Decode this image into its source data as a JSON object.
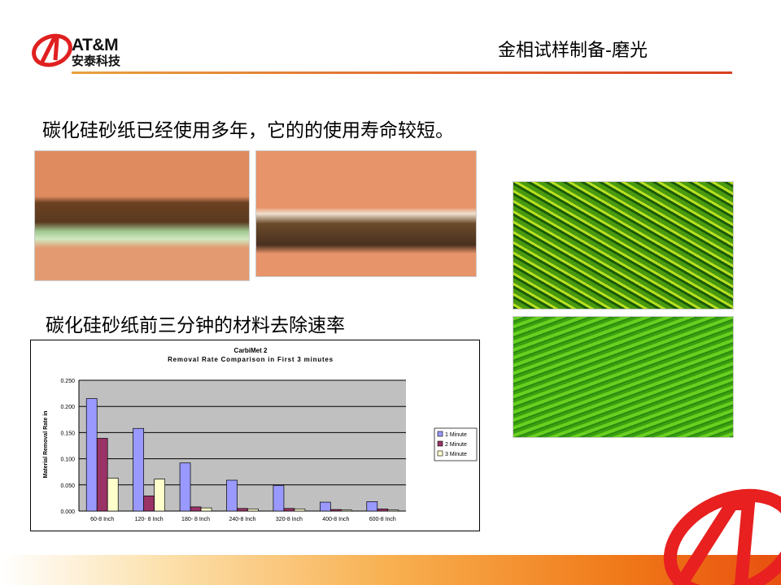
{
  "logo": {
    "brand": "AT&M",
    "name_cn": "安泰科技"
  },
  "header": {
    "title": "金相试样制备-磨光"
  },
  "body": {
    "line1": "碳化硅砂纸已经使用多年，它的的使用寿命较短。",
    "line2": "碳化硅砂纸前三分钟的材料去除速率"
  },
  "colors": {
    "accent": "#e02020",
    "series": [
      "#9999ff",
      "#993366",
      "#ffffcc"
    ],
    "plot_bg": "#c0c0c0"
  },
  "chart_data": {
    "type": "bar",
    "title": "CarbiMet 2",
    "subtitle": "Removal Rate Comparison in First 3 minutes",
    "xlabel": "",
    "ylabel": "Material Removal Rate in",
    "ylim": [
      0,
      0.25
    ],
    "yticks": [
      "0.000",
      "0.050",
      "0.100",
      "0.150",
      "0.200",
      "0.250"
    ],
    "grid": true,
    "legend": "right",
    "categories": [
      "60-8 Inch",
      "120- 8 Inch",
      "180- 8 Inch",
      "240-8 Inch",
      "320-8 Inch",
      "400-8 Inch",
      "600-8 Inch"
    ],
    "series": [
      {
        "name": "1 Minute",
        "values": [
          0.215,
          0.158,
          0.092,
          0.059,
          0.049,
          0.017,
          0.018
        ]
      },
      {
        "name": "2 Minute",
        "values": [
          0.139,
          0.029,
          0.008,
          0.005,
          0.005,
          0.003,
          0.004
        ]
      },
      {
        "name": "3 Minute",
        "values": [
          0.063,
          0.061,
          0.006,
          0.004,
          0.004,
          0.002,
          0.002
        ]
      }
    ]
  }
}
